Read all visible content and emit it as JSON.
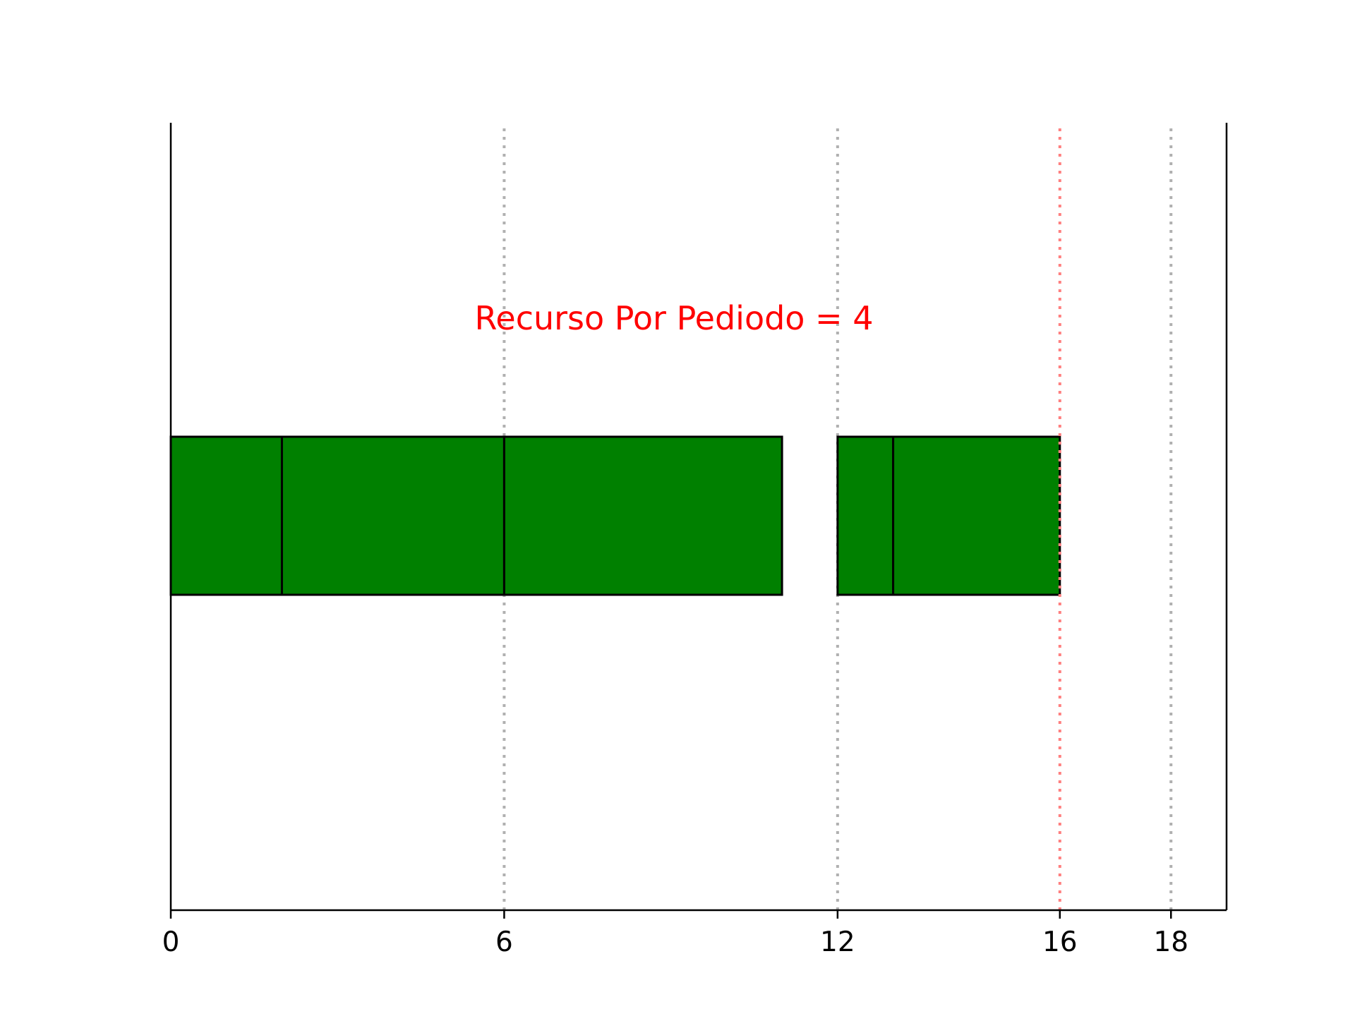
{
  "chart_data": {
    "type": "gantt-bar",
    "annotation": "Recurso Por Pediodo = 4",
    "xlim": [
      0,
      19
    ],
    "ticks": [
      {
        "value": 0,
        "label": "0"
      },
      {
        "value": 6,
        "label": "6"
      },
      {
        "value": 12,
        "label": "12"
      },
      {
        "value": 16,
        "label": "16"
      },
      {
        "value": 18,
        "label": "18"
      }
    ],
    "period_lines": [
      6,
      12,
      18
    ],
    "deadline_line": 16,
    "segments": [
      {
        "start": 0,
        "end": 2
      },
      {
        "start": 2,
        "end": 6
      },
      {
        "start": 6,
        "end": 11
      },
      {
        "start": 12,
        "end": 13
      },
      {
        "start": 13,
        "end": 16
      }
    ],
    "grid": false,
    "legend": "none"
  },
  "colors": {
    "bar_fill": "#008000",
    "bar_edge": "#000000",
    "period_line": "#b0b0b0",
    "deadline_line": "#ff7f7f",
    "annotation": "#ff0000",
    "axis": "#000000"
  }
}
